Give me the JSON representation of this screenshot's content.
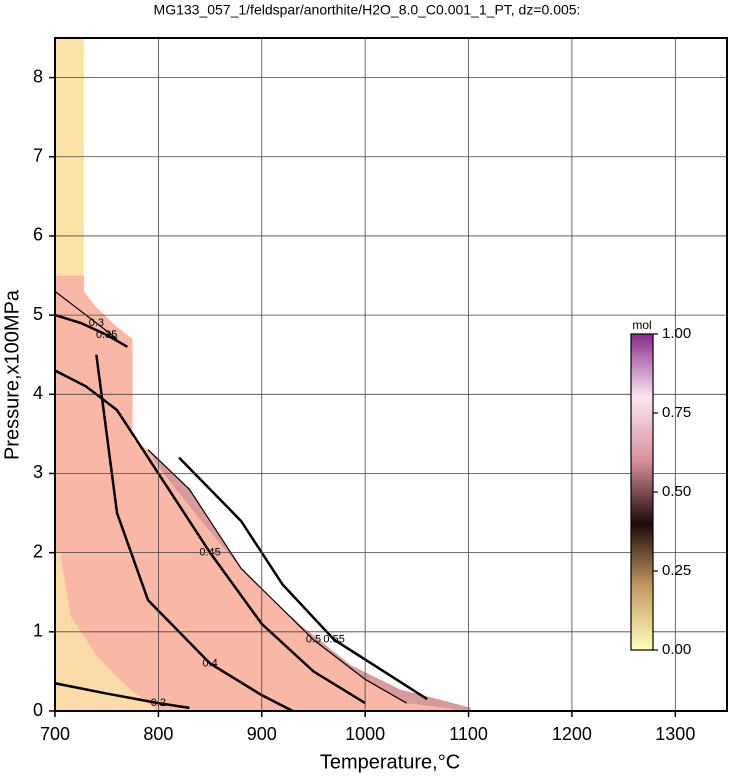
{
  "chart_data": {
    "type": "contour",
    "title": "MG133_057_1/feldspar/anorthite/H2O_8.0_C0.001_1_PT, dz=0.005:",
    "xlabel": "Temperature,°C",
    "ylabel": "Pressure,x100MPa",
    "xlim": [
      700,
      1350
    ],
    "ylim": [
      0,
      8.5
    ],
    "xticks": [
      700,
      800,
      900,
      1000,
      1100,
      1200,
      1300
    ],
    "yticks": [
      0,
      1,
      2,
      3,
      4,
      5,
      6,
      7,
      8
    ],
    "grid": true,
    "regions": [
      {
        "color": "#f9b8a6",
        "x": [
          700,
          700,
          728,
          728,
          740,
          760,
          775,
          775,
          790,
          802,
          840,
          889,
          937,
          986,
          1034,
          1073,
          1102,
          1102
        ],
        "y": [
          0,
          5.5,
          5.5,
          5.3,
          5.1,
          4.85,
          4.7,
          3.43,
          3.3,
          3.05,
          2.42,
          1.66,
          1.09,
          0.58,
          0.27,
          0.14,
          0.04,
          0
        ]
      },
      {
        "color": "#d99a9c",
        "x": [
          790,
          830,
          880,
          950,
          1000,
          1040,
          1102,
          1102,
          1073,
          1034,
          986,
          937,
          889,
          840,
          802,
          790
        ],
        "y": [
          3.3,
          2.8,
          1.8,
          0.9,
          0.4,
          0.1,
          0,
          0.04,
          0.14,
          0.27,
          0.58,
          1.09,
          1.66,
          2.42,
          3.05,
          3.3
        ]
      },
      {
        "color": "#fde3a7",
        "x": [
          700,
          728,
          728,
          700
        ],
        "y": [
          5.5,
          5.5,
          8.5,
          8.5
        ]
      },
      {
        "color": "#fbdca8",
        "x": [
          700,
          800,
          770,
          740,
          715,
          705,
          700
        ],
        "y": [
          0,
          0,
          0.3,
          0.7,
          1.2,
          2.0,
          2.0
        ]
      }
    ],
    "contours": [
      {
        "level": 0.2,
        "x": [
          700,
          750,
          800,
          830
        ],
        "y": [
          0.35,
          0.22,
          0.1,
          0.04
        ]
      },
      {
        "level": 0.3,
        "x": [
          700,
          720,
          740,
          760
        ],
        "y": [
          5.3,
          5.1,
          4.9,
          4.7
        ]
      },
      {
        "level": 0.35,
        "x": [
          700,
          725,
          750,
          770
        ],
        "y": [
          5.0,
          4.9,
          4.75,
          4.6
        ]
      },
      {
        "level": 0.4,
        "x": [
          740,
          760,
          790,
          850,
          900,
          930
        ],
        "y": [
          4.5,
          2.5,
          1.4,
          0.6,
          0.2,
          0
        ]
      },
      {
        "level": 0.45,
        "x": [
          700,
          730,
          760,
          800,
          850,
          900,
          950,
          1000
        ],
        "y": [
          4.3,
          4.1,
          3.8,
          3.0,
          2.0,
          1.1,
          0.5,
          0.1
        ]
      },
      {
        "level": 0.5,
        "x": [
          790,
          830,
          880,
          950,
          1000,
          1040
        ],
        "y": [
          3.3,
          2.8,
          1.8,
          0.9,
          0.4,
          0.1
        ]
      },
      {
        "level": 0.55,
        "x": [
          820,
          880,
          920,
          970,
          1030,
          1060
        ],
        "y": [
          3.2,
          2.4,
          1.6,
          0.9,
          0.4,
          0.15
        ]
      }
    ],
    "colorbar": {
      "label": "mol",
      "lim": [
        0,
        1
      ],
      "ticks": [
        {
          "value": 0,
          "label": "0.00"
        },
        {
          "value": 0.25,
          "label": "0.25"
        },
        {
          "value": 0.5,
          "label": "0.50"
        },
        {
          "value": 0.75,
          "label": "0.75"
        },
        {
          "value": 1,
          "label": "1.00"
        }
      ],
      "colors": [
        "#ffffb8",
        "#c49a62",
        "#1e0a0a",
        "#d9909e",
        "#fbe6f2",
        "#8a2a8a"
      ]
    }
  }
}
